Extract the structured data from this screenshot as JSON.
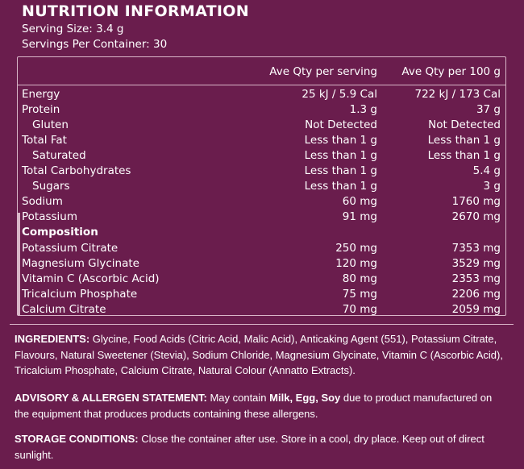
{
  "title": "NUTRITION INFORMATION",
  "serving_size": "Serving Size: 3.4 g",
  "servings_per_container": "Servings Per Container: 30",
  "columns": [
    "Ave Qty per serving",
    "Ave Qty per 100 g"
  ],
  "rows": [
    {
      "name": "Energy",
      "per_serving": "25 kJ / 5.9 Cal",
      "per_100g": "722 kJ / 173 Cal"
    },
    {
      "name": "Protein",
      "per_serving": "1.3 g",
      "per_100g": "37 g"
    },
    {
      "name": "Gluten",
      "per_serving": "Not Detected",
      "per_100g": "Not Detected"
    },
    {
      "name": "Total Fat",
      "per_serving": "Less than 1 g",
      "per_100g": "Less than 1 g"
    },
    {
      "name": "Saturated",
      "per_serving": "Less than 1 g",
      "per_100g": "Less than 1 g"
    },
    {
      "name": "Total Carbohydrates",
      "per_serving": "Less than 1 g",
      "per_100g": "5.4 g"
    },
    {
      "name": "Sugars",
      "per_serving": "Less than 1 g",
      "per_100g": "3 g"
    },
    {
      "name": "Sodium",
      "per_serving": "60 mg",
      "per_100g": "1760 mg"
    },
    {
      "name": "Potassium",
      "per_serving": "91 mg",
      "per_100g": "2670 mg"
    },
    {
      "name": "Composition",
      "per_serving": "",
      "per_100g": ""
    },
    {
      "name": "Potassium Citrate",
      "per_serving": "250 mg",
      "per_100g": "7353 mg"
    },
    {
      "name": "Magnesium Glycinate",
      "per_serving": "120 mg",
      "per_100g": "3529 mg"
    },
    {
      "name": "Vitamin C (Ascorbic Acid)",
      "per_serving": "80 mg",
      "per_100g": "2353 mg"
    },
    {
      "name": "Tricalcium Phosphate",
      "per_serving": "75 mg",
      "per_100g": "2206 mg"
    },
    {
      "name": "Calcium Citrate",
      "per_serving": "70 mg",
      "per_100g": "2059 mg"
    }
  ],
  "ingredients": {
    "label": "INGREDIENTS:",
    "text": " Glycine, Food Acids (Citric Acid, Malic Acid), Anticaking Agent (551), Potassium Citrate, Flavours, Natural Sweetener (Stevia), Sodium Chloride, Magnesium Glycinate, Vitamin C (Ascorbic Acid), Tricalcium Phosphate, Calcium Citrate, Natural Colour (Annatto Extracts)."
  },
  "advisory": {
    "label": "ADVISORY & ALLERGEN STATEMENT:",
    "text_before": " May contain ",
    "allergens": "Milk, Egg, Soy",
    "text_after": " due to product manufactured on the equipment that produces products containing these allergens."
  },
  "storage": {
    "label": "STORAGE CONDITIONS:",
    "text": " Close the container after use. Store in a cool, dry place. Keep out of direct sunlight."
  },
  "colors": {
    "background": "#6a1d4d",
    "text": "#ffffff",
    "rules": "#d9b6c8"
  }
}
